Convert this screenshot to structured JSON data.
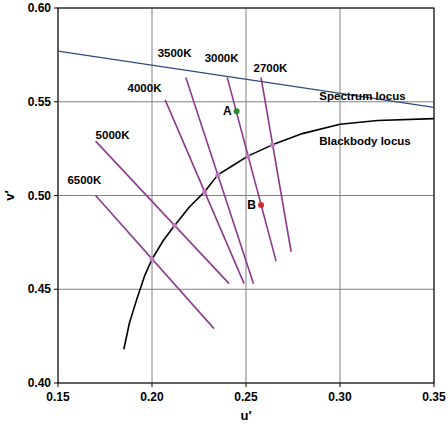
{
  "chart_data": {
    "type": "line",
    "x_label": "u′",
    "y_label": "v′",
    "xlim": [
      0.15,
      0.35
    ],
    "ylim": [
      0.4,
      0.6
    ],
    "xticks": [
      0.15,
      {
        "value": 0.2,
        "label": "0.20"
      },
      0.25,
      {
        "value": 0.3,
        "label": "0.30"
      },
      0.35
    ],
    "yticks": [
      {
        "value": 0.4,
        "label": "0.40"
      },
      0.45,
      {
        "value": 0.5,
        "label": "0.50"
      },
      0.55,
      {
        "value": 0.6,
        "label": "0.60"
      }
    ],
    "grid": true,
    "series": [
      {
        "type": "line",
        "color": "#2e4a7d",
        "x": [
          0.15,
          0.35
        ],
        "values": [
          0.577,
          0.547
        ]
      },
      {
        "type": "line",
        "color": "#000000",
        "x": [
          0.185,
          0.188,
          0.192,
          0.196,
          0.2,
          0.206,
          0.212,
          0.22,
          0.228,
          0.235,
          0.243,
          0.251,
          0.264,
          0.28,
          0.3,
          0.32,
          0.35
        ],
        "values": [
          0.418,
          0.432,
          0.445,
          0.457,
          0.466,
          0.476,
          0.484,
          0.494,
          0.502,
          0.511,
          0.516,
          0.521,
          0.527,
          0.533,
          0.538,
          0.54,
          0.541
        ]
      },
      {
        "type": "line",
        "color": "#8b3a8b",
        "x": [
          0.17,
          0.233
        ],
        "values": [
          0.5,
          0.429
        ]
      },
      {
        "type": "line",
        "color": "#8b3a8b",
        "x": [
          0.17,
          0.241
        ],
        "values": [
          0.529,
          0.453
        ]
      },
      {
        "type": "line",
        "color": "#8b3a8b",
        "x": [
          0.207,
          0.249
        ],
        "values": [
          0.551,
          0.453
        ]
      },
      {
        "type": "line",
        "color": "#8b3a8b",
        "x": [
          0.218,
          0.254
        ],
        "values": [
          0.563,
          0.453
        ]
      },
      {
        "type": "line",
        "color": "#8b3a8b",
        "x": [
          0.24,
          0.266
        ],
        "values": [
          0.563,
          0.465
        ]
      },
      {
        "type": "line",
        "color": "#8b3a8b",
        "x": [
          0.258,
          0.274
        ],
        "values": [
          0.563,
          0.47
        ]
      },
      {
        "type": "scatter",
        "marker": "circle",
        "color": "#c078c0",
        "x": [
          0.2,
          0.212,
          0.228,
          0.235,
          0.251,
          0.264
        ],
        "values": [
          0.466,
          0.484,
          0.502,
          0.511,
          0.521,
          0.527
        ]
      },
      {
        "type": "scatter",
        "marker": "circle",
        "name": "A",
        "color": "#2e8b2e",
        "x": [
          0.245
        ],
        "values": [
          0.545
        ]
      },
      {
        "type": "scatter",
        "marker": "circle",
        "name": "B",
        "color": "#d42a2a",
        "x": [
          0.258
        ],
        "values": [
          0.495
        ]
      }
    ],
    "annotations": [
      {
        "text": "Spectrum locus",
        "x": 0.289,
        "y": 0.551
      },
      {
        "text": "Blackbody locus",
        "x": 0.289,
        "y": 0.527
      },
      {
        "text": "6500K",
        "x": 0.155,
        "y": 0.506
      },
      {
        "text": "5000K",
        "x": 0.17,
        "y": 0.53
      },
      {
        "text": "4000K",
        "x": 0.187,
        "y": 0.555
      },
      {
        "text": "3500K",
        "x": 0.203,
        "y": 0.574
      },
      {
        "text": "3000K",
        "x": 0.228,
        "y": 0.571
      },
      {
        "text": "2700K",
        "x": 0.254,
        "y": 0.566
      }
    ]
  }
}
